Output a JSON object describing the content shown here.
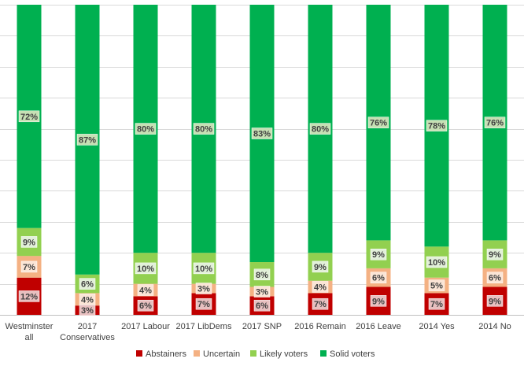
{
  "chart_data": {
    "type": "bar",
    "stacked": true,
    "percent_stacked": true,
    "title": "",
    "xlabel": "",
    "ylabel": "",
    "ylim": [
      0,
      100
    ],
    "grid": true,
    "legend_position": "bottom",
    "categories": [
      [
        "Westminster",
        "all"
      ],
      [
        "2017",
        "Conservatives"
      ],
      [
        "2017 Labour"
      ],
      [
        "2017 LibDems"
      ],
      [
        "2017 SNP"
      ],
      [
        "2016 Remain"
      ],
      [
        "2016 Leave"
      ],
      [
        "2014 Yes"
      ],
      [
        "2014 No"
      ]
    ],
    "series": [
      {
        "name": "Abstainers",
        "color": "#c00000",
        "label_bg": "#e8c0c0",
        "values": [
          12,
          3,
          6,
          7,
          6,
          7,
          9,
          7,
          9
        ],
        "labels": [
          "12%",
          "3%",
          "6%",
          "7%",
          "6%",
          "7%",
          "9%",
          "7%",
          "9%"
        ]
      },
      {
        "name": "Uncertain",
        "color": "#f4b183",
        "label_bg": "#fbe5d6",
        "values": [
          7,
          4,
          4,
          3,
          3,
          4,
          6,
          5,
          6
        ],
        "labels": [
          "7%",
          "4%",
          "4%",
          "3%",
          "3%",
          "4%",
          "6%",
          "5%",
          "6%"
        ]
      },
      {
        "name": "Likely voters",
        "color": "#92d050",
        "label_bg": "#e2f0d9",
        "values": [
          9,
          6,
          10,
          10,
          8,
          9,
          9,
          10,
          9
        ],
        "labels": [
          "9%",
          "6%",
          "10%",
          "10%",
          "8%",
          "9%",
          "9%",
          "10%",
          "9%"
        ]
      },
      {
        "name": "Solid voters",
        "color": "#00b050",
        "label_bg": "#c6e0b4",
        "values": [
          72,
          87,
          80,
          80,
          83,
          80,
          76,
          78,
          76
        ],
        "labels": [
          "72%",
          "87%",
          "80%",
          "80%",
          "83%",
          "80%",
          "76%",
          "78%",
          "76%"
        ]
      }
    ]
  }
}
